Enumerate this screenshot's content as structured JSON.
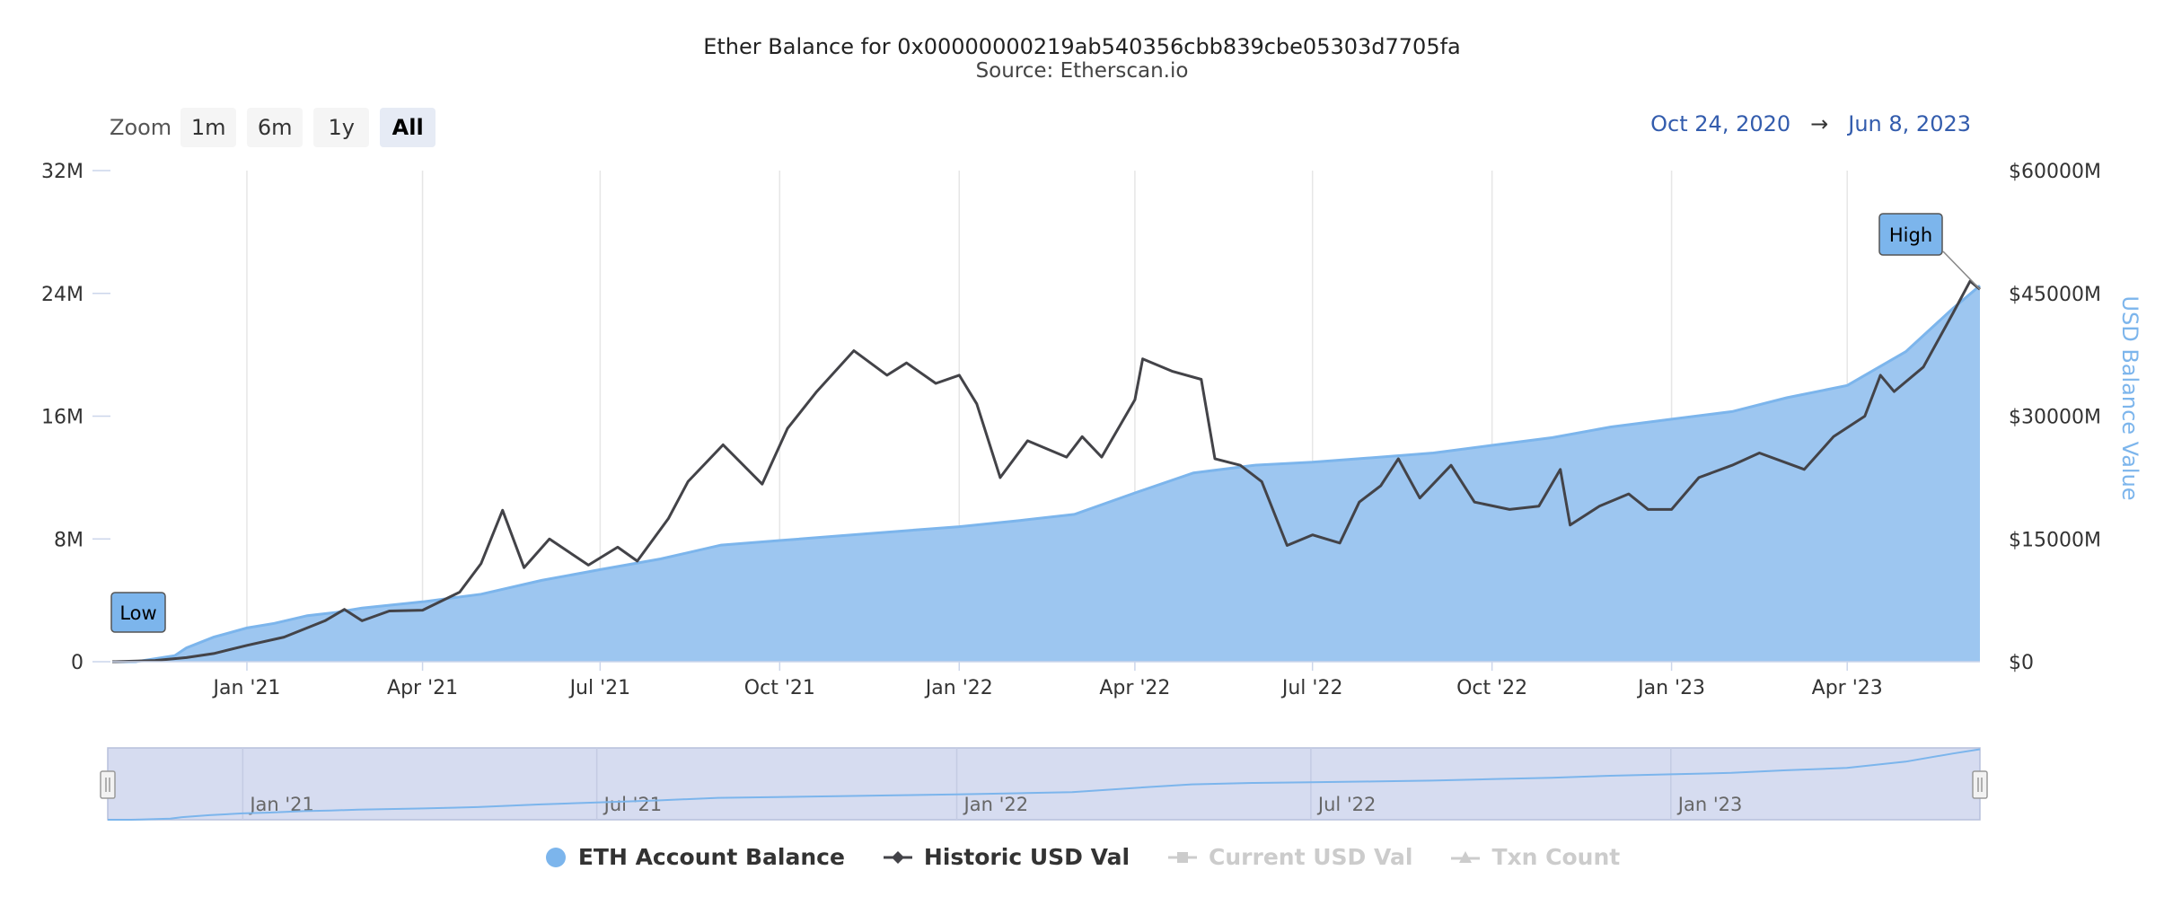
{
  "chart_data": {
    "type": "area",
    "title": "Ether Balance for 0x00000000219ab540356cbb839cbe05303d7705fa",
    "subtitle": "Source: Etherscan.io",
    "x_ticks": [
      "Jan '21",
      "Apr '21",
      "Jul '21",
      "Oct '21",
      "Jan '22",
      "Apr '22",
      "Jul '22",
      "Oct '22",
      "Jan '23",
      "Apr '23"
    ],
    "navigator_ticks": [
      "Jan '21",
      "Jul '21",
      "Jan '22",
      "Jul '22",
      "Jan '23"
    ],
    "y_left_ticks": [
      "0",
      "8M",
      "16M",
      "24M",
      "32M"
    ],
    "y_right_ticks": [
      "$0",
      "$15000M",
      "$30000M",
      "$45000M",
      "$60000M"
    ],
    "y_right_label": "USD Balance Value",
    "ylim_left": [
      0,
      32000000
    ],
    "ylim_right": [
      0,
      60000
    ],
    "xlim": [
      "2020-10-24",
      "2023-06-08"
    ],
    "grid": "vertical",
    "series": [
      {
        "name": "ETH Account Balance",
        "axis": "left",
        "type": "area",
        "color": "#9dc6f0",
        "points": [
          [
            "2020-10-24",
            0
          ],
          [
            "2020-11-05",
            1000
          ],
          [
            "2020-11-10",
            100000
          ],
          [
            "2020-11-25",
            400000
          ],
          [
            "2020-12-01",
            900000
          ],
          [
            "2020-12-15",
            1600000
          ],
          [
            "2021-01-01",
            2200000
          ],
          [
            "2021-01-15",
            2500000
          ],
          [
            "2021-02-01",
            3000000
          ],
          [
            "2021-02-15",
            3200000
          ],
          [
            "2021-03-01",
            3500000
          ],
          [
            "2021-04-01",
            3900000
          ],
          [
            "2021-05-01",
            4400000
          ],
          [
            "2021-06-01",
            5300000
          ],
          [
            "2021-07-01",
            6000000
          ],
          [
            "2021-08-01",
            6700000
          ],
          [
            "2021-09-01",
            7600000
          ],
          [
            "2021-10-01",
            7900000
          ],
          [
            "2021-11-01",
            8200000
          ],
          [
            "2021-12-01",
            8500000
          ],
          [
            "2022-01-01",
            8800000
          ],
          [
            "2022-02-01",
            9200000
          ],
          [
            "2022-03-01",
            9600000
          ],
          [
            "2022-04-01",
            11000000
          ],
          [
            "2022-05-01",
            12300000
          ],
          [
            "2022-06-01",
            12800000
          ],
          [
            "2022-07-01",
            13000000
          ],
          [
            "2022-08-01",
            13300000
          ],
          [
            "2022-09-01",
            13600000
          ],
          [
            "2022-10-01",
            14100000
          ],
          [
            "2022-11-01",
            14600000
          ],
          [
            "2022-12-01",
            15300000
          ],
          [
            "2023-01-01",
            15800000
          ],
          [
            "2023-02-01",
            16300000
          ],
          [
            "2023-03-01",
            17200000
          ],
          [
            "2023-04-01",
            18000000
          ],
          [
            "2023-05-01",
            20200000
          ],
          [
            "2023-05-25",
            23000000
          ],
          [
            "2023-06-08",
            24500000
          ]
        ]
      },
      {
        "name": "Historic USD Val",
        "axis": "right",
        "type": "line",
        "color": "#434348",
        "points": [
          [
            "2020-10-24",
            0
          ],
          [
            "2020-11-15",
            150
          ],
          [
            "2020-12-01",
            500
          ],
          [
            "2020-12-15",
            1000
          ],
          [
            "2021-01-01",
            2000
          ],
          [
            "2021-01-20",
            3000
          ],
          [
            "2021-02-10",
            5000
          ],
          [
            "2021-02-20",
            6400
          ],
          [
            "2021-03-01",
            5000
          ],
          [
            "2021-03-15",
            6200
          ],
          [
            "2021-04-01",
            6300
          ],
          [
            "2021-04-20",
            8500
          ],
          [
            "2021-05-01",
            12000
          ],
          [
            "2021-05-12",
            18500
          ],
          [
            "2021-05-23",
            11500
          ],
          [
            "2021-06-05",
            15000
          ],
          [
            "2021-06-25",
            11800
          ],
          [
            "2021-07-10",
            14000
          ],
          [
            "2021-07-20",
            12300
          ],
          [
            "2021-08-05",
            17500
          ],
          [
            "2021-08-15",
            22000
          ],
          [
            "2021-09-02",
            26500
          ],
          [
            "2021-09-22",
            21700
          ],
          [
            "2021-10-05",
            28500
          ],
          [
            "2021-10-20",
            33000
          ],
          [
            "2021-11-08",
            38000
          ],
          [
            "2021-11-25",
            35000
          ],
          [
            "2021-12-05",
            36500
          ],
          [
            "2021-12-20",
            34000
          ],
          [
            "2022-01-01",
            35000
          ],
          [
            "2022-01-10",
            31500
          ],
          [
            "2022-01-22",
            22500
          ],
          [
            "2022-02-05",
            27000
          ],
          [
            "2022-02-25",
            25000
          ],
          [
            "2022-03-05",
            27500
          ],
          [
            "2022-03-15",
            25000
          ],
          [
            "2022-04-01",
            32000
          ],
          [
            "2022-04-05",
            37000
          ],
          [
            "2022-04-20",
            35500
          ],
          [
            "2022-05-05",
            34500
          ],
          [
            "2022-05-12",
            24800
          ],
          [
            "2022-05-25",
            24000
          ],
          [
            "2022-06-05",
            22000
          ],
          [
            "2022-06-18",
            14200
          ],
          [
            "2022-07-01",
            15500
          ],
          [
            "2022-07-15",
            14500
          ],
          [
            "2022-07-25",
            19500
          ],
          [
            "2022-08-05",
            21500
          ],
          [
            "2022-08-14",
            24800
          ],
          [
            "2022-08-25",
            20000
          ],
          [
            "2022-09-10",
            24000
          ],
          [
            "2022-09-22",
            19500
          ],
          [
            "2022-10-10",
            18600
          ],
          [
            "2022-10-25",
            19000
          ],
          [
            "2022-11-05",
            23500
          ],
          [
            "2022-11-10",
            16700
          ],
          [
            "2022-11-25",
            19000
          ],
          [
            "2022-12-10",
            20500
          ],
          [
            "2022-12-20",
            18600
          ],
          [
            "2023-01-01",
            18600
          ],
          [
            "2023-01-15",
            22500
          ],
          [
            "2023-02-01",
            24000
          ],
          [
            "2023-02-15",
            25500
          ],
          [
            "2023-03-10",
            23500
          ],
          [
            "2023-03-25",
            27500
          ],
          [
            "2023-04-10",
            30000
          ],
          [
            "2023-04-18",
            35000
          ],
          [
            "2023-04-25",
            33000
          ],
          [
            "2023-05-10",
            36000
          ],
          [
            "2023-05-25",
            42500
          ],
          [
            "2023-06-03",
            46500
          ],
          [
            "2023-06-08",
            45500
          ]
        ]
      }
    ],
    "flags": [
      {
        "label": "Low",
        "series": "ETH Account Balance",
        "date": "2020-10-24"
      },
      {
        "label": "High",
        "series": "ETH Account Balance",
        "date": "2023-06-08"
      }
    ],
    "legend": [
      {
        "name": "ETH Account Balance",
        "symbol": "circle",
        "color": "#7cb5ec",
        "visible": true
      },
      {
        "name": "Historic USD Val",
        "symbol": "diamond-line",
        "color": "#434348",
        "visible": true
      },
      {
        "name": "Current USD Val",
        "symbol": "square-line",
        "color": "#cccccc",
        "visible": false
      },
      {
        "name": "Txn Count",
        "symbol": "triangle-line",
        "color": "#cccccc",
        "visible": false
      }
    ],
    "legend_position": "bottom-center"
  },
  "zoom": {
    "label": "Zoom",
    "buttons": [
      "1m",
      "6m",
      "1y",
      "All"
    ],
    "selected": "All"
  },
  "range": {
    "from": "Oct 24, 2020",
    "arrow": "→",
    "to": "Jun 8, 2023"
  }
}
